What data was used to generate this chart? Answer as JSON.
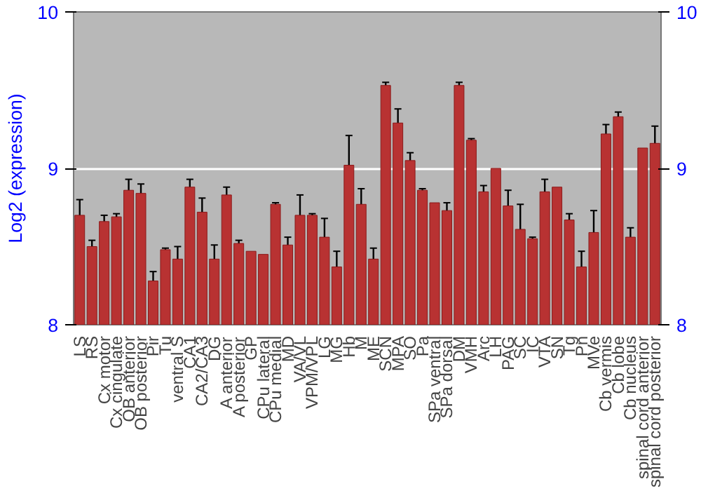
{
  "chart_data": {
    "type": "bar",
    "ylabel": "Log2 (expression)",
    "categories": [
      "LS",
      "RS",
      "Cx motor",
      "Cx cingulate",
      "OB anterior",
      "OB posterior",
      "Pir",
      "Tu",
      "ventral S",
      "CA1",
      "CA2/CA3",
      "DG",
      "A anterior",
      "A posterior",
      "GP",
      "CPu lateral",
      "CPu medial",
      "MD",
      "VA/VL",
      "VPM/VPL",
      "LG",
      "MG",
      "Hb",
      "M",
      "ME",
      "SCN",
      "MPA",
      "SO",
      "Pa",
      "SPa ventral",
      "SPa dorsal",
      "DM",
      "VMH",
      "Arc",
      "LH",
      "PAG",
      "SC",
      "IC",
      "VTA",
      "SN",
      "Tg",
      "Pn",
      "MVe",
      "Cb vermis",
      "Cb lobe",
      "Cb nucleus",
      "spinal cord anterior",
      "spinal cord posterior"
    ],
    "values": [
      8.7,
      8.5,
      8.66,
      8.69,
      8.86,
      8.84,
      8.28,
      8.48,
      8.42,
      8.88,
      8.72,
      8.42,
      8.83,
      8.52,
      8.47,
      8.45,
      8.77,
      8.51,
      8.7,
      8.7,
      8.56,
      8.37,
      9.02,
      8.77,
      8.42,
      9.53,
      9.29,
      9.05,
      8.86,
      8.78,
      8.73,
      9.53,
      9.18,
      8.85,
      9.0,
      8.76,
      8.61,
      8.55,
      8.85,
      8.88,
      8.67,
      8.37,
      8.59,
      9.22,
      9.33,
      8.56,
      9.13,
      9.16
    ],
    "errors": [
      0.1,
      0.04,
      0.04,
      0.02,
      0.07,
      0.06,
      0.06,
      0.01,
      0.08,
      0.05,
      0.09,
      0.09,
      0.05,
      0.02,
      null,
      null,
      0.01,
      0.05,
      0.13,
      0.01,
      0.12,
      0.1,
      0.19,
      0.1,
      0.07,
      0.02,
      0.09,
      0.05,
      0.01,
      null,
      0.05,
      0.02,
      0.01,
      0.04,
      null,
      0.1,
      0.16,
      0.01,
      0.08,
      null,
      0.04,
      0.1,
      0.14,
      0.06,
      0.03,
      0.06,
      null,
      0.11
    ],
    "color": "#b83232",
    "ylim": [
      8,
      10
    ],
    "yticks": [
      8,
      9,
      10
    ],
    "y2lim": [
      8,
      10
    ],
    "y2ticks": [
      8,
      9,
      10
    ],
    "grid": "y"
  }
}
